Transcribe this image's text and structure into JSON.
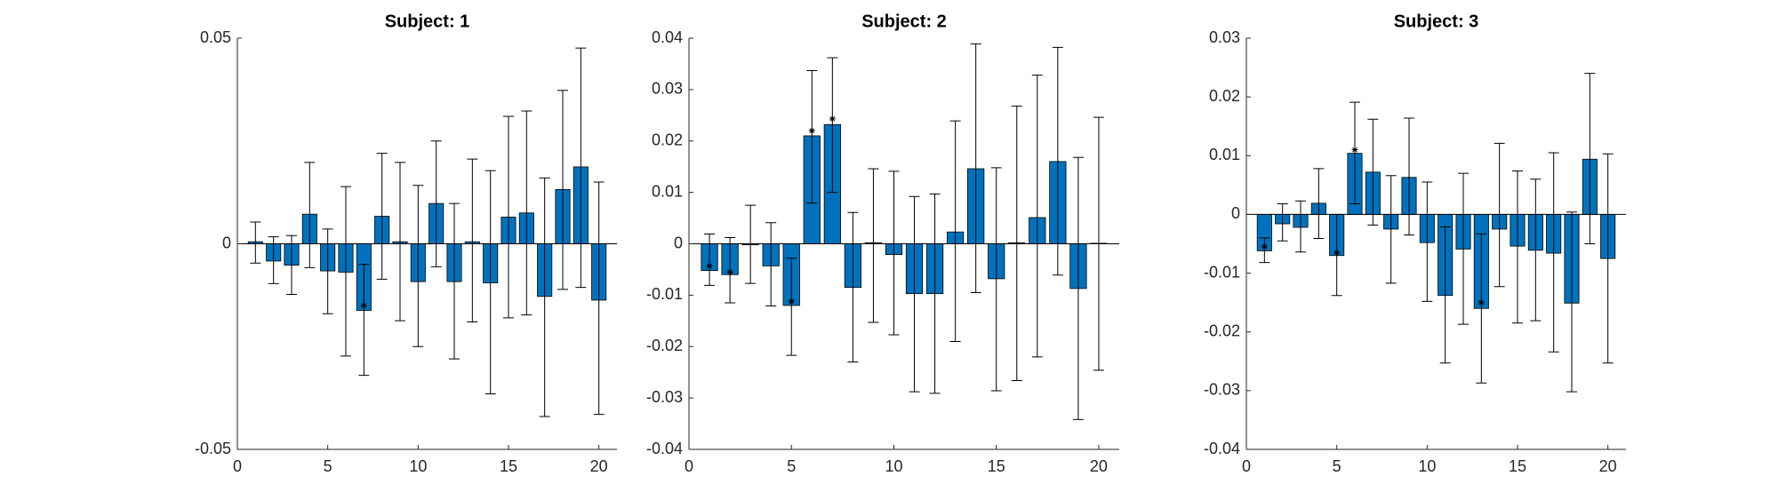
{
  "chart_data": [
    {
      "type": "bar",
      "title": "Subject: 1",
      "color": "#0072bd",
      "x": [
        1,
        2,
        3,
        4,
        5,
        6,
        7,
        8,
        9,
        10,
        11,
        12,
        13,
        14,
        15,
        16,
        17,
        18,
        19,
        20
      ],
      "values": [
        0.0005,
        -0.0042,
        -0.0052,
        0.0072,
        -0.0066,
        -0.0069,
        -0.0162,
        0.0067,
        0.0005,
        -0.0092,
        0.0098,
        -0.0092,
        0.0005,
        -0.0095,
        0.0065,
        0.0075,
        -0.0128,
        0.0132,
        0.0187,
        -0.0137
      ],
      "lower": [
        -0.0047,
        -0.0097,
        -0.0123,
        -0.0058,
        -0.017,
        -0.0273,
        -0.032,
        -0.0086,
        -0.0187,
        -0.025,
        -0.0056,
        -0.028,
        -0.019,
        -0.0365,
        -0.018,
        -0.0173,
        -0.042,
        -0.0111,
        -0.0106,
        -0.0415
      ],
      "upper": [
        0.0053,
        0.0017,
        0.002,
        0.0198,
        0.0036,
        0.0139,
        -0.005,
        0.022,
        0.0198,
        0.0142,
        0.025,
        0.0098,
        0.0206,
        0.0178,
        0.031,
        0.0323,
        0.016,
        0.0373,
        0.0476,
        0.015
      ],
      "markers": [
        null,
        null,
        null,
        null,
        null,
        null,
        -0.015,
        null,
        null,
        null,
        null,
        null,
        null,
        null,
        null,
        null,
        null,
        null,
        null,
        null
      ],
      "xlim": [
        0,
        21
      ],
      "xticks": [
        0,
        5,
        10,
        15,
        20
      ],
      "ylim": [
        -0.05,
        0.05
      ],
      "yticks": [
        -0.05,
        0,
        0.05
      ]
    },
    {
      "type": "bar",
      "title": "Subject: 2",
      "color": "#0072bd",
      "x": [
        1,
        2,
        3,
        4,
        5,
        6,
        7,
        8,
        9,
        10,
        11,
        12,
        13,
        14,
        15,
        16,
        17,
        18,
        19,
        20
      ],
      "values": [
        -0.0052,
        -0.006,
        -0.0002,
        -0.0043,
        -0.012,
        0.021,
        0.0232,
        -0.0085,
        0.0002,
        -0.0021,
        -0.0097,
        -0.0097,
        0.0023,
        0.0146,
        -0.0068,
        0.0002,
        0.0051,
        0.016,
        -0.0087,
        0.0001
      ],
      "lower": [
        -0.0081,
        -0.0115,
        -0.0077,
        -0.0121,
        -0.0217,
        0.0079,
        0.01,
        -0.023,
        -0.0153,
        -0.0177,
        -0.0288,
        -0.0291,
        -0.019,
        -0.0095,
        -0.0286,
        -0.0266,
        -0.022,
        -0.0061,
        -0.0342,
        -0.0246
      ],
      "upper": [
        0.0019,
        0.0012,
        0.0075,
        0.0041,
        -0.0028,
        0.0337,
        0.0362,
        0.0061,
        0.0146,
        0.0141,
        0.0092,
        0.0097,
        0.0239,
        0.0389,
        0.0148,
        0.0268,
        0.0328,
        0.0382,
        0.0168,
        0.0246
      ],
      "markers": [
        -0.0043,
        -0.0055,
        null,
        null,
        -0.0112,
        0.022,
        0.0243,
        null,
        null,
        null,
        null,
        null,
        null,
        null,
        null,
        null,
        null,
        null,
        null,
        null
      ],
      "xlim": [
        0,
        21
      ],
      "xticks": [
        0,
        5,
        10,
        15,
        20
      ],
      "ylim": [
        -0.04,
        0.04
      ],
      "yticks": [
        -0.04,
        -0.03,
        -0.02,
        -0.01,
        0,
        0.01,
        0.02,
        0.03,
        0.04
      ]
    },
    {
      "type": "bar",
      "title": "Subject: 3",
      "color": "#0072bd",
      "x": [
        1,
        2,
        3,
        4,
        5,
        6,
        7,
        8,
        9,
        10,
        11,
        12,
        13,
        14,
        15,
        16,
        17,
        18,
        19,
        20
      ],
      "values": [
        -0.0062,
        -0.0016,
        -0.0022,
        0.0019,
        -0.007,
        0.0104,
        0.0072,
        -0.0025,
        0.0063,
        -0.0048,
        -0.0138,
        -0.0059,
        -0.016,
        -0.0025,
        -0.0054,
        -0.0061,
        -0.0066,
        -0.0151,
        0.0094,
        -0.0075
      ],
      "lower": [
        -0.0082,
        -0.0045,
        -0.0064,
        -0.0041,
        -0.0138,
        0.0018,
        -0.0018,
        -0.0117,
        -0.0035,
        -0.0148,
        -0.0253,
        -0.0187,
        -0.0287,
        -0.0123,
        -0.0185,
        -0.0181,
        -0.0234,
        -0.0302,
        -0.005,
        -0.0253
      ],
      "upper": [
        -0.004,
        0.0018,
        0.0023,
        0.0078,
        0,
        0.0191,
        0.0162,
        0.0066,
        0.0164,
        0.0055,
        -0.0021,
        0.007,
        -0.0033,
        0.0121,
        0.0074,
        0.006,
        0.0105,
        0.0004,
        0.024,
        0.0103
      ],
      "markers": [
        -0.0055,
        null,
        null,
        null,
        -0.0065,
        0.011,
        null,
        null,
        null,
        null,
        null,
        null,
        -0.015,
        null,
        null,
        null,
        null,
        null,
        null,
        null
      ],
      "xlim": [
        0,
        21
      ],
      "xticks": [
        0,
        5,
        10,
        15,
        20
      ],
      "ylim": [
        -0.04,
        0.03
      ],
      "yticks": [
        -0.04,
        -0.03,
        -0.02,
        -0.01,
        0,
        0.01,
        0.02,
        0.03
      ]
    }
  ]
}
